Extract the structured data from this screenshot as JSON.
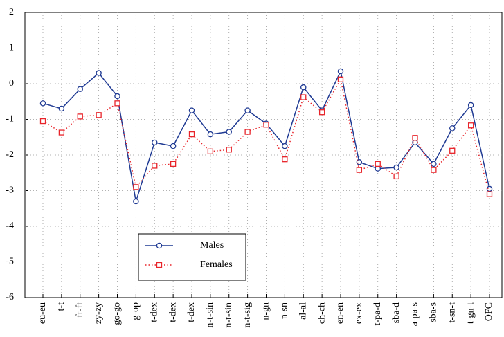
{
  "chart_data": {
    "type": "line",
    "categories": [
      "eu-eu",
      "t-t",
      "ft-ft",
      "zy-zy",
      "go-go",
      "g-op",
      "t-dex",
      "t-dex",
      "t-dex",
      "n-t-sin",
      "n-t-sin",
      "n-t-sig",
      "n-gn",
      "n-sn",
      "al-al",
      "ch-ch",
      "en-en",
      "ex-ex",
      "t-pa-d",
      "sba-d",
      "a-pa-s",
      "sba-s",
      "t-sn-t",
      "t-gn-t",
      "OFC"
    ],
    "series": [
      {
        "name": "Males",
        "color": "#1f3a93",
        "values": [
          -0.55,
          -0.7,
          -0.15,
          0.3,
          -0.35,
          -3.3,
          -1.65,
          -1.75,
          -0.75,
          -1.42,
          -1.35,
          -0.75,
          -1.12,
          -1.75,
          -0.1,
          -0.75,
          0.35,
          -2.2,
          -2.38,
          -2.35,
          -1.65,
          -2.25,
          -1.25,
          -0.6,
          -2.95
        ]
      },
      {
        "name": "Females",
        "color": "#e8242a",
        "values": [
          -1.05,
          -1.37,
          -0.92,
          -0.88,
          -0.55,
          -2.9,
          -2.3,
          -2.25,
          -1.42,
          -1.9,
          -1.85,
          -1.35,
          -1.15,
          -2.12,
          -0.38,
          -0.8,
          0.12,
          -2.42,
          -2.25,
          -2.6,
          -1.52,
          -2.42,
          -1.88,
          -1.17,
          -3.1
        ]
      }
    ],
    "ylim": [
      -6,
      2
    ],
    "yticks": [
      -6,
      -5,
      -4,
      -3,
      -2,
      -1,
      0,
      1,
      2
    ],
    "grid": true
  }
}
